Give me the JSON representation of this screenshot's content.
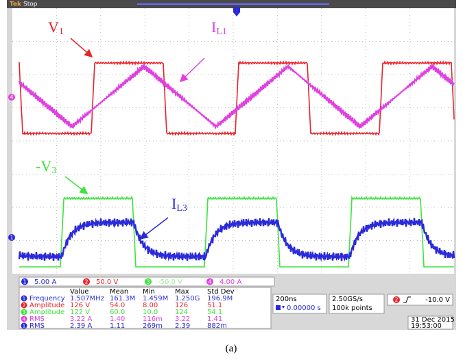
{
  "header": {
    "brand": "Tek",
    "status": "Stop"
  },
  "annotations": [
    {
      "text": "V",
      "sub": "1"
    },
    {
      "text": "I",
      "sub": "L1"
    },
    {
      "text": "-V",
      "sub": "3"
    },
    {
      "text": "I",
      "sub": "L3"
    }
  ],
  "trace_markers": [
    "4",
    "1"
  ],
  "channel_scales": [
    {
      "channel": "1",
      "scale": "5.00 A"
    },
    {
      "channel": "2",
      "scale": "50.0 V"
    },
    {
      "channel": "3",
      "scale": "-50.0 V"
    },
    {
      "channel": "4",
      "scale": "4.00 A"
    }
  ],
  "measurements": {
    "columns": [
      "Value",
      "Mean",
      "Min",
      "Max",
      "Std Dev"
    ],
    "rows": [
      {
        "channel": "1",
        "label": "Frequency",
        "cells": [
          "1.507MHz",
          "161.3M",
          "1.459M",
          "1.250G",
          "196.9M"
        ]
      },
      {
        "channel": "2",
        "label": "Amplitude",
        "cells": [
          "126 V",
          "54.0",
          "8.00",
          "126",
          "51.1"
        ]
      },
      {
        "channel": "3",
        "label": "Amplitude",
        "cells": [
          "122 V",
          "60.0",
          "10.0",
          "124",
          "54.1"
        ]
      },
      {
        "channel": "4",
        "label": "RMS",
        "cells": [
          "3.22 A",
          "1.40",
          "116m",
          "3.22",
          "1.41"
        ]
      },
      {
        "channel": "1",
        "label": "RMS",
        "cells": [
          "2.39 A",
          "1.11",
          "269m",
          "2.39",
          "882m"
        ]
      }
    ]
  },
  "timebase": {
    "scale": "200ns",
    "position": "0.00000 s"
  },
  "acquisition": {
    "rate": "2.50GS/s",
    "length": "100k points"
  },
  "trigger": {
    "channel": "2",
    "level": "-10.0 V"
  },
  "timestamp": {
    "date": "31 Dec 2015",
    "time": "19:53:00"
  },
  "caption": "(a)"
}
